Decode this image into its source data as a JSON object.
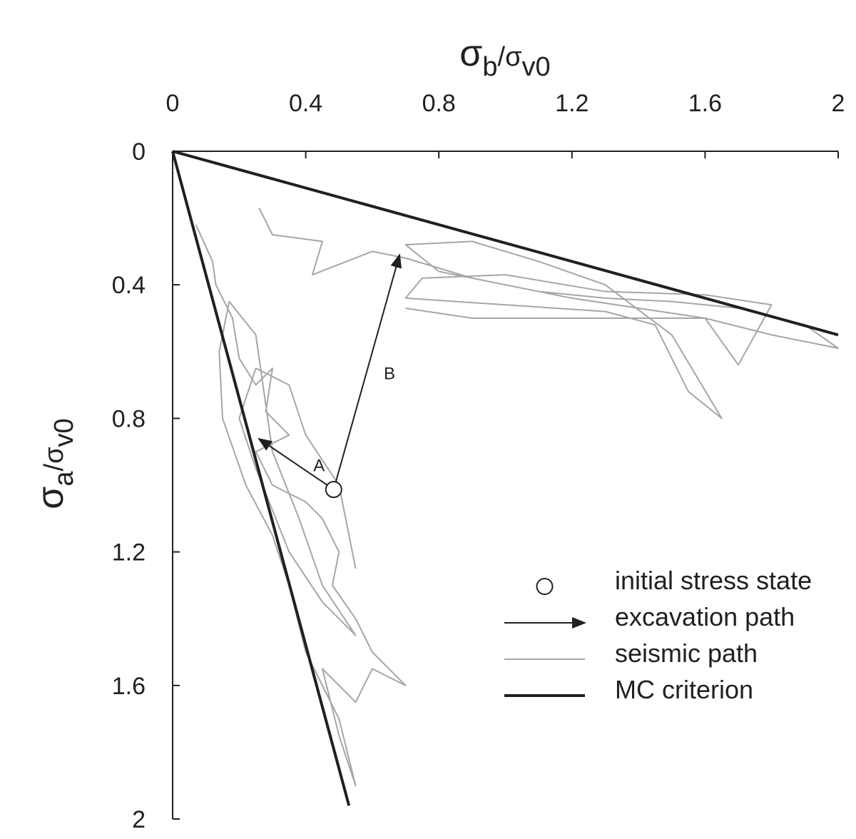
{
  "chart_data": {
    "type": "line",
    "xlabel": [
      "σ",
      "b",
      "/σ",
      "v0"
    ],
    "ylabel": [
      "σ",
      "a",
      "/σ",
      "v0"
    ],
    "xlim": [
      0,
      2
    ],
    "xticks": [
      0,
      0.4,
      0.8,
      1.2,
      1.6,
      2
    ],
    "ylim": [
      0,
      2
    ],
    "yticks": [
      0,
      0.4,
      0.8,
      1.2,
      1.6,
      2
    ],
    "y_inverted": true,
    "x_axis_position": "top",
    "legend": "bottom-right",
    "series": [
      {
        "name": "initial stress state",
        "style": "marker",
        "color": "#231f20",
        "paths": [
          {
            "x": [
              0.484
            ],
            "values": [
              1.013
            ]
          }
        ]
      },
      {
        "name": "excavation path",
        "style": "arrow",
        "color": "#231f20",
        "paths": [
          {
            "label": "A",
            "x": [
              0.484,
              0.259
            ],
            "values": [
              1.013,
              0.861
            ]
          },
          {
            "label": "B",
            "x": [
              0.484,
              0.682
            ],
            "values": [
              1.013,
              0.31
            ]
          }
        ]
      },
      {
        "name": "seismic path",
        "style": "line",
        "color": "#a6a6a6",
        "paths": [
          {
            "x": [
              0.26,
              0.3,
              0.45,
              0.42,
              0.6,
              0.7,
              0.9,
              1.1,
              1.3,
              1.5,
              1.7,
              1.9,
              2.0,
              1.8,
              1.6,
              1.4,
              1.2,
              1.0,
              0.8,
              0.7,
              0.9,
              1.1,
              1.3,
              1.5,
              1.65,
              1.55,
              1.45,
              1.3,
              1.0,
              0.7,
              0.75,
              1.0,
              1.3,
              1.6,
              1.8,
              1.7,
              1.6,
              1.2,
              0.9,
              0.7
            ],
            "values": [
              0.17,
              0.25,
              0.27,
              0.37,
              0.3,
              0.32,
              0.38,
              0.42,
              0.44,
              0.45,
              0.47,
              0.52,
              0.59,
              0.55,
              0.5,
              0.47,
              0.44,
              0.4,
              0.36,
              0.28,
              0.27,
              0.33,
              0.4,
              0.55,
              0.8,
              0.72,
              0.52,
              0.48,
              0.46,
              0.44,
              0.38,
              0.37,
              0.42,
              0.43,
              0.46,
              0.64,
              0.5,
              0.5,
              0.5,
              0.47
            ]
          },
          {
            "x": [
              0.07,
              0.12,
              0.13,
              0.18,
              0.2,
              0.25,
              0.3,
              0.28,
              0.35,
              0.25,
              0.3,
              0.4,
              0.45,
              0.5,
              0.48,
              0.55,
              0.6,
              0.7,
              0.6,
              0.55,
              0.5,
              0.45,
              0.5,
              0.55,
              0.5,
              0.4,
              0.35,
              0.3,
              0.22,
              0.15,
              0.14,
              0.17,
              0.25,
              0.3,
              0.38,
              0.45,
              0.55,
              0.45,
              0.35,
              0.25,
              0.2,
              0.25,
              0.35,
              0.4,
              0.5,
              0.55
            ],
            "values": [
              0.22,
              0.33,
              0.4,
              0.5,
              0.62,
              0.7,
              0.65,
              0.78,
              0.85,
              0.9,
              1.0,
              1.05,
              1.1,
              1.2,
              1.3,
              1.4,
              1.5,
              1.6,
              1.55,
              1.65,
              1.6,
              1.55,
              1.75,
              1.9,
              1.7,
              1.5,
              1.3,
              1.15,
              1.0,
              0.8,
              0.6,
              0.45,
              0.55,
              0.9,
              1.1,
              1.3,
              1.45,
              1.35,
              1.2,
              0.95,
              0.8,
              0.65,
              0.7,
              0.85,
              1.0,
              1.25
            ]
          }
        ]
      },
      {
        "name": "MC criterion",
        "style": "line",
        "color": "#231f20",
        "width": 4,
        "paths": [
          {
            "x": [
              0,
              2
            ],
            "values": [
              0,
              0.55
            ]
          },
          {
            "x": [
              0,
              0.53
            ],
            "values": [
              0,
              1.96
            ]
          }
        ]
      }
    ]
  }
}
